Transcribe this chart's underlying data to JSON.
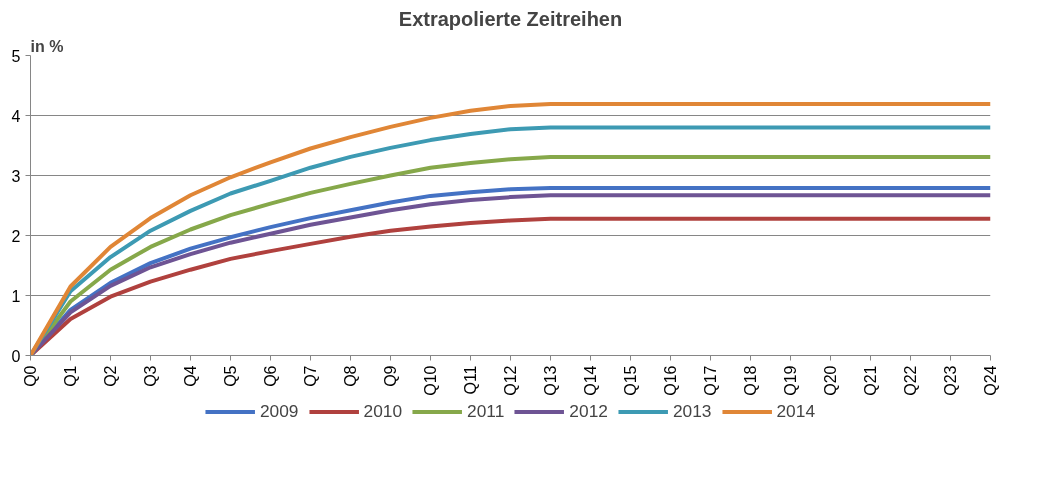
{
  "chart_data": {
    "type": "line",
    "title": "Extrapolierte Zeitreihen",
    "ylabel": "in %",
    "categories": [
      "Q0",
      "Q1",
      "Q2",
      "Q3",
      "Q4",
      "Q5",
      "Q6",
      "Q7",
      "Q8",
      "Q9",
      "Q10",
      "Q11",
      "Q12",
      "Q13",
      "Q14",
      "Q15",
      "Q16",
      "Q17",
      "Q18",
      "Q19",
      "Q20",
      "Q21",
      "Q22",
      "Q23",
      "Q24"
    ],
    "series": [
      {
        "name": "2009",
        "color": "#4472c4",
        "values": [
          0,
          0.76,
          1.21,
          1.54,
          1.78,
          1.97,
          2.14,
          2.29,
          2.42,
          2.55,
          2.66,
          2.72,
          2.77,
          2.79,
          2.79,
          2.79,
          2.79,
          2.79,
          2.79,
          2.79,
          2.79,
          2.79,
          2.79,
          2.79,
          2.79
        ]
      },
      {
        "name": "2010",
        "color": "#b0413e",
        "values": [
          0,
          0.61,
          0.98,
          1.23,
          1.43,
          1.61,
          1.74,
          1.86,
          1.98,
          2.08,
          2.15,
          2.21,
          2.25,
          2.28,
          2.28,
          2.28,
          2.28,
          2.28,
          2.28,
          2.28,
          2.28,
          2.28,
          2.28,
          2.28,
          2.28
        ]
      },
      {
        "name": "2011",
        "color": "#86a84a",
        "values": [
          0,
          0.9,
          1.43,
          1.81,
          2.1,
          2.34,
          2.53,
          2.71,
          2.86,
          3.0,
          3.13,
          3.21,
          3.27,
          3.31,
          3.31,
          3.31,
          3.31,
          3.31,
          3.31,
          3.31,
          3.31,
          3.31,
          3.31,
          3.31,
          3.31
        ]
      },
      {
        "name": "2012",
        "color": "#6e5494",
        "values": [
          0,
          0.72,
          1.16,
          1.47,
          1.69,
          1.88,
          2.03,
          2.18,
          2.3,
          2.42,
          2.52,
          2.59,
          2.64,
          2.67,
          2.67,
          2.67,
          2.67,
          2.67,
          2.67,
          2.67,
          2.67,
          2.67,
          2.67,
          2.67,
          2.67
        ]
      },
      {
        "name": "2013",
        "color": "#3d9ab3",
        "values": [
          0,
          1.07,
          1.64,
          2.08,
          2.41,
          2.7,
          2.91,
          3.13,
          3.31,
          3.46,
          3.59,
          3.69,
          3.77,
          3.8,
          3.8,
          3.8,
          3.8,
          3.8,
          3.8,
          3.8,
          3.8,
          3.8,
          3.8,
          3.8,
          3.8
        ]
      },
      {
        "name": "2014",
        "color": "#e08636",
        "values": [
          0,
          1.15,
          1.81,
          2.29,
          2.67,
          2.97,
          3.22,
          3.45,
          3.64,
          3.81,
          3.96,
          4.08,
          4.16,
          4.19,
          4.19,
          4.19,
          4.19,
          4.19,
          4.19,
          4.19,
          4.19,
          4.19,
          4.19,
          4.19,
          4.19
        ]
      }
    ],
    "ylim": [
      0,
      5
    ],
    "yticks": [
      0,
      1,
      2,
      3,
      4,
      5
    ],
    "grid": "y",
    "legend": "bottom",
    "line_style": "solid",
    "marker": "none"
  }
}
